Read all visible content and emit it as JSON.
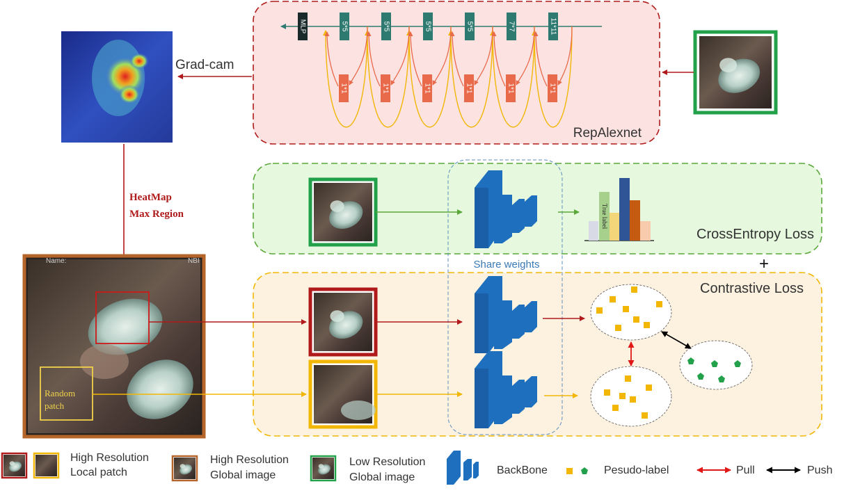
{
  "gradcam_label": "Grad-cam",
  "heatmap": {
    "line1": "HeatMap",
    "line2": "Max Region"
  },
  "random_patch": {
    "line1": "Random",
    "line2": "patch"
  },
  "endoscopy_overlay": {
    "left_text": "Name:",
    "right_text": "NBI"
  },
  "repalexnet": {
    "title": "RepAlexnet",
    "top_blocks": [
      "MLP",
      "5*5",
      "5*5",
      "5*5",
      "5*5",
      "7*7",
      "11*11"
    ],
    "branch_blocks": [
      "1*1",
      "1*1",
      "1*1",
      "1*1",
      "1*1",
      "1*1"
    ]
  },
  "crossentropy": {
    "title": "CrossEntropy Loss",
    "true_label": "True label",
    "plus": "+"
  },
  "contrastive": {
    "title": "Contrastive Loss"
  },
  "share_weights": "Share weights",
  "legend": {
    "local_line1": "High Resolution",
    "local_line2": "Local patch",
    "global_line1": "High Resolution",
    "global_line2": "Global image",
    "low_line1": "Low Resolution",
    "low_line2": "Global image",
    "backbone": "BackBone",
    "pseudo": "Pesudo-label",
    "pull": "Pull",
    "push": "Push"
  },
  "colors": {
    "red_box": "#b01a1a",
    "green_box": "#22a14a",
    "orange_box": "#b5642a",
    "yellow_box": "#f2b705",
    "teal_block": "#2e7a70",
    "salmon_block": "#e86a4a",
    "backbone_blue": "#1f6fbf",
    "pseudo_yellow": "#f2b705",
    "pseudo_green": "#22a14a"
  }
}
